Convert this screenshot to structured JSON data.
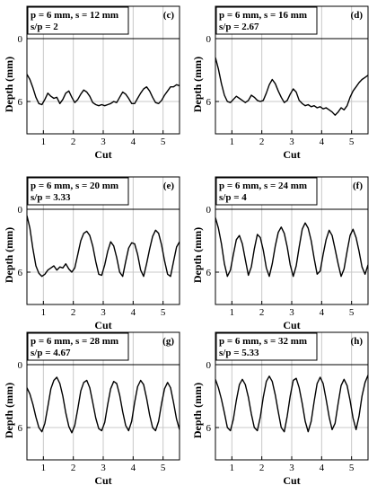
{
  "chart_data": [
    {
      "type": "line",
      "panel": "(c)",
      "legend": [
        "p = 6 mm, s = 12 mm",
        "s/p = 2"
      ],
      "xlabel": "Cut",
      "ylabel": "Depth (mm)",
      "xlim": [
        0.45,
        5.55
      ],
      "ylim": [
        0,
        9.4
      ],
      "y_inverted": true,
      "xticks": [
        1,
        2,
        3,
        4,
        5
      ],
      "yticks": [
        0,
        6
      ],
      "grid_x": true,
      "series": [
        {
          "x": [
            0.45,
            0.55,
            0.65,
            0.75,
            0.85,
            0.95,
            1.05,
            1.15,
            1.25,
            1.35,
            1.45,
            1.55,
            1.65,
            1.75,
            1.85,
            1.95,
            2.05,
            2.15,
            2.25,
            2.35,
            2.45,
            2.55,
            2.65,
            2.75,
            2.85,
            2.95,
            3.05,
            3.15,
            3.25,
            3.35,
            3.45,
            3.55,
            3.65,
            3.75,
            3.85,
            3.95,
            4.05,
            4.15,
            4.25,
            4.35,
            4.45,
            4.55,
            4.65,
            4.75,
            4.85,
            4.95,
            5.05,
            5.15,
            5.25,
            5.35,
            5.45,
            5.55
          ],
          "y": [
            3.4,
            3.9,
            4.7,
            5.6,
            6.2,
            6.3,
            5.8,
            5.2,
            5.5,
            5.7,
            5.6,
            6.2,
            5.8,
            5.2,
            5.0,
            5.6,
            6.1,
            5.8,
            5.3,
            4.9,
            5.1,
            5.5,
            6.1,
            6.3,
            6.4,
            6.3,
            6.4,
            6.3,
            6.2,
            6.0,
            6.1,
            5.6,
            5.1,
            5.3,
            5.7,
            6.2,
            6.2,
            5.7,
            5.2,
            4.8,
            4.6,
            5.0,
            5.6,
            6.1,
            6.2,
            5.9,
            5.4,
            5.0,
            4.6,
            4.6,
            4.4,
            4.5
          ]
        }
      ]
    },
    {
      "type": "line",
      "panel": "(d)",
      "legend": [
        "p = 6 mm, s = 16 mm",
        "s/p = 2.67"
      ],
      "xlabel": "Cut",
      "ylabel": "Depth (mm)",
      "xlim": [
        0.45,
        5.55
      ],
      "ylim": [
        0,
        9.4
      ],
      "y_inverted": true,
      "xticks": [
        1,
        2,
        3,
        4,
        5
      ],
      "yticks": [
        0,
        6
      ],
      "grid_x": true,
      "series": [
        {
          "x": [
            0.45,
            0.55,
            0.65,
            0.75,
            0.85,
            0.95,
            1.05,
            1.15,
            1.25,
            1.35,
            1.45,
            1.55,
            1.65,
            1.75,
            1.85,
            1.95,
            2.05,
            2.15,
            2.25,
            2.35,
            2.45,
            2.55,
            2.65,
            2.75,
            2.85,
            2.95,
            3.05,
            3.15,
            3.25,
            3.35,
            3.45,
            3.55,
            3.65,
            3.75,
            3.85,
            3.95,
            4.05,
            4.15,
            4.25,
            4.35,
            4.45,
            4.55,
            4.65,
            4.75,
            4.85,
            4.95,
            5.05,
            5.15,
            5.25,
            5.35,
            5.45,
            5.55
          ],
          "y": [
            1.8,
            2.9,
            4.3,
            5.4,
            6.0,
            6.1,
            5.8,
            5.5,
            5.7,
            5.9,
            6.1,
            5.9,
            5.4,
            5.6,
            5.9,
            6.0,
            5.9,
            5.2,
            4.4,
            3.9,
            4.3,
            5.0,
            5.6,
            6.1,
            5.9,
            5.3,
            4.8,
            5.1,
            5.9,
            6.2,
            6.4,
            6.3,
            6.5,
            6.4,
            6.6,
            6.5,
            6.7,
            6.6,
            6.8,
            7.0,
            7.3,
            7.0,
            6.6,
            6.8,
            6.4,
            5.6,
            5.0,
            4.6,
            4.2,
            3.9,
            3.7,
            3.5
          ]
        }
      ]
    },
    {
      "type": "line",
      "panel": "(e)",
      "legend": [
        "p = 6 mm, s = 20 mm",
        "s/p = 3.33"
      ],
      "xlabel": "Cut",
      "ylabel": "Depth (mm)",
      "xlim": [
        0.45,
        5.55
      ],
      "ylim": [
        0,
        9.4
      ],
      "y_inverted": true,
      "xticks": [
        1,
        2,
        3,
        4,
        5
      ],
      "yticks": [
        0,
        6
      ],
      "grid_x": true,
      "series": [
        {
          "x": [
            0.45,
            0.55,
            0.65,
            0.75,
            0.85,
            0.95,
            1.05,
            1.15,
            1.25,
            1.35,
            1.45,
            1.55,
            1.65,
            1.75,
            1.85,
            1.95,
            2.05,
            2.15,
            2.25,
            2.35,
            2.45,
            2.55,
            2.65,
            2.75,
            2.85,
            2.95,
            3.05,
            3.15,
            3.25,
            3.35,
            3.45,
            3.55,
            3.65,
            3.75,
            3.85,
            3.95,
            4.05,
            4.15,
            4.25,
            4.35,
            4.45,
            4.55,
            4.65,
            4.75,
            4.85,
            4.95,
            5.05,
            5.15,
            5.25,
            5.35,
            5.45,
            5.55
          ],
          "y": [
            0.6,
            1.8,
            3.8,
            5.4,
            6.1,
            6.4,
            6.2,
            5.8,
            5.6,
            5.4,
            5.8,
            5.5,
            5.6,
            5.2,
            5.7,
            6.0,
            5.6,
            4.3,
            3.0,
            2.3,
            2.1,
            2.5,
            3.5,
            5.0,
            6.2,
            6.3,
            5.3,
            4.0,
            3.1,
            3.5,
            4.6,
            6.0,
            6.4,
            5.0,
            3.7,
            3.2,
            3.3,
            4.3,
            5.8,
            6.4,
            5.2,
            3.8,
            2.6,
            2.0,
            2.3,
            3.4,
            4.9,
            6.2,
            6.4,
            5.0,
            3.6,
            3.1
          ]
        }
      ]
    },
    {
      "type": "line",
      "panel": "(f)",
      "legend": [
        "p = 6 mm, s = 24 mm",
        "s/p = 4"
      ],
      "xlabel": "Cut",
      "ylabel": "Depth (mm)",
      "xlim": [
        0.45,
        5.55
      ],
      "ylim": [
        0,
        9.4
      ],
      "y_inverted": true,
      "xticks": [
        1,
        2,
        3,
        4,
        5
      ],
      "yticks": [
        0,
        6
      ],
      "grid_x": true,
      "series": [
        {
          "x": [
            0.45,
            0.55,
            0.65,
            0.75,
            0.85,
            0.95,
            1.05,
            1.15,
            1.25,
            1.35,
            1.45,
            1.55,
            1.65,
            1.75,
            1.85,
            1.95,
            2.05,
            2.15,
            2.25,
            2.35,
            2.45,
            2.55,
            2.65,
            2.75,
            2.85,
            2.95,
            3.05,
            3.15,
            3.25,
            3.35,
            3.45,
            3.55,
            3.65,
            3.75,
            3.85,
            3.95,
            4.05,
            4.15,
            4.25,
            4.35,
            4.45,
            4.55,
            4.65,
            4.75,
            4.85,
            4.95,
            5.05,
            5.15,
            5.25,
            5.35,
            5.45,
            5.55
          ],
          "y": [
            0.8,
            1.8,
            3.3,
            5.2,
            6.4,
            5.8,
            4.3,
            2.9,
            2.5,
            3.3,
            4.8,
            6.3,
            5.5,
            3.8,
            2.4,
            2.7,
            3.9,
            5.6,
            6.4,
            5.2,
            3.5,
            2.2,
            1.7,
            2.3,
            3.6,
            5.3,
            6.4,
            5.4,
            3.6,
            1.9,
            1.3,
            1.8,
            3.0,
            4.7,
            6.2,
            5.9,
            4.3,
            2.9,
            2.0,
            2.5,
            3.8,
            5.2,
            6.4,
            5.7,
            4.0,
            2.5,
            1.9,
            2.7,
            4.0,
            5.5,
            6.2,
            5.3
          ]
        }
      ]
    },
    {
      "type": "line",
      "panel": "(g)",
      "legend": [
        "p = 6 mm, s = 28 mm",
        "s/p = 4.67"
      ],
      "xlabel": "Cut",
      "ylabel": "Depth (mm)",
      "xlim": [
        0.45,
        5.55
      ],
      "ylim": [
        0,
        9.4
      ],
      "y_inverted": true,
      "xticks": [
        1,
        2,
        3,
        4,
        5
      ],
      "yticks": [
        0,
        6
      ],
      "grid_x": true,
      "series": [
        {
          "x": [
            0.45,
            0.55,
            0.65,
            0.75,
            0.85,
            0.95,
            1.05,
            1.15,
            1.25,
            1.35,
            1.45,
            1.55,
            1.65,
            1.75,
            1.85,
            1.95,
            2.05,
            2.15,
            2.25,
            2.35,
            2.45,
            2.55,
            2.65,
            2.75,
            2.85,
            2.95,
            3.05,
            3.15,
            3.25,
            3.35,
            3.45,
            3.55,
            3.65,
            3.75,
            3.85,
            3.95,
            4.05,
            4.15,
            4.25,
            4.35,
            4.45,
            4.55,
            4.65,
            4.75,
            4.85,
            4.95,
            5.05,
            5.15,
            5.25,
            5.35,
            5.45,
            5.55
          ],
          "y": [
            2.2,
            2.8,
            3.8,
            5.0,
            6.0,
            6.4,
            5.6,
            4.0,
            2.3,
            1.5,
            1.2,
            1.8,
            3.0,
            4.6,
            5.9,
            6.5,
            5.8,
            4.2,
            2.5,
            1.7,
            1.5,
            2.2,
            3.6,
            5.1,
            6.1,
            6.3,
            5.5,
            3.8,
            2.3,
            1.6,
            1.8,
            2.9,
            4.5,
            5.8,
            6.3,
            5.4,
            3.6,
            2.1,
            1.5,
            1.9,
            3.2,
            4.8,
            6.0,
            6.3,
            5.4,
            3.7,
            2.3,
            1.7,
            2.2,
            3.6,
            5.2,
            6.2
          ]
        }
      ]
    },
    {
      "type": "line",
      "panel": "(h)",
      "legend": [
        "p = 6 mm, s = 32 mm",
        "s/p = 5.33"
      ],
      "xlabel": "Cut",
      "ylabel": "Depth (mm)",
      "xlim": [
        0.45,
        5.55
      ],
      "ylim": [
        0,
        9.4
      ],
      "y_inverted": true,
      "xticks": [
        1,
        2,
        3,
        4,
        5
      ],
      "yticks": [
        0,
        6
      ],
      "grid_x": true,
      "series": [
        {
          "x": [
            0.45,
            0.55,
            0.65,
            0.75,
            0.85,
            0.95,
            1.05,
            1.15,
            1.25,
            1.35,
            1.45,
            1.55,
            1.65,
            1.75,
            1.85,
            1.95,
            2.05,
            2.15,
            2.25,
            2.35,
            2.45,
            2.55,
            2.65,
            2.75,
            2.85,
            2.95,
            3.05,
            3.15,
            3.25,
            3.35,
            3.45,
            3.55,
            3.65,
            3.75,
            3.85,
            3.95,
            4.05,
            4.15,
            4.25,
            4.35,
            4.45,
            4.55,
            4.65,
            4.75,
            4.85,
            4.95,
            5.05,
            5.15,
            5.25,
            5.35,
            5.45,
            5.55
          ],
          "y": [
            1.4,
            2.2,
            3.3,
            4.6,
            6.0,
            6.3,
            5.2,
            3.4,
            1.9,
            1.4,
            1.9,
            3.1,
            4.7,
            6.0,
            6.3,
            5.0,
            3.1,
            1.6,
            1.1,
            1.6,
            2.9,
            4.5,
            6.0,
            6.4,
            4.9,
            3.0,
            1.5,
            1.3,
            2.2,
            3.7,
            5.4,
            6.4,
            5.4,
            3.5,
            1.8,
            1.2,
            1.8,
            3.3,
            5.0,
            6.2,
            5.6,
            3.7,
            2.0,
            1.4,
            2.0,
            3.4,
            5.1,
            6.2,
            4.9,
            3.0,
            1.7,
            1.0
          ]
        }
      ]
    }
  ]
}
